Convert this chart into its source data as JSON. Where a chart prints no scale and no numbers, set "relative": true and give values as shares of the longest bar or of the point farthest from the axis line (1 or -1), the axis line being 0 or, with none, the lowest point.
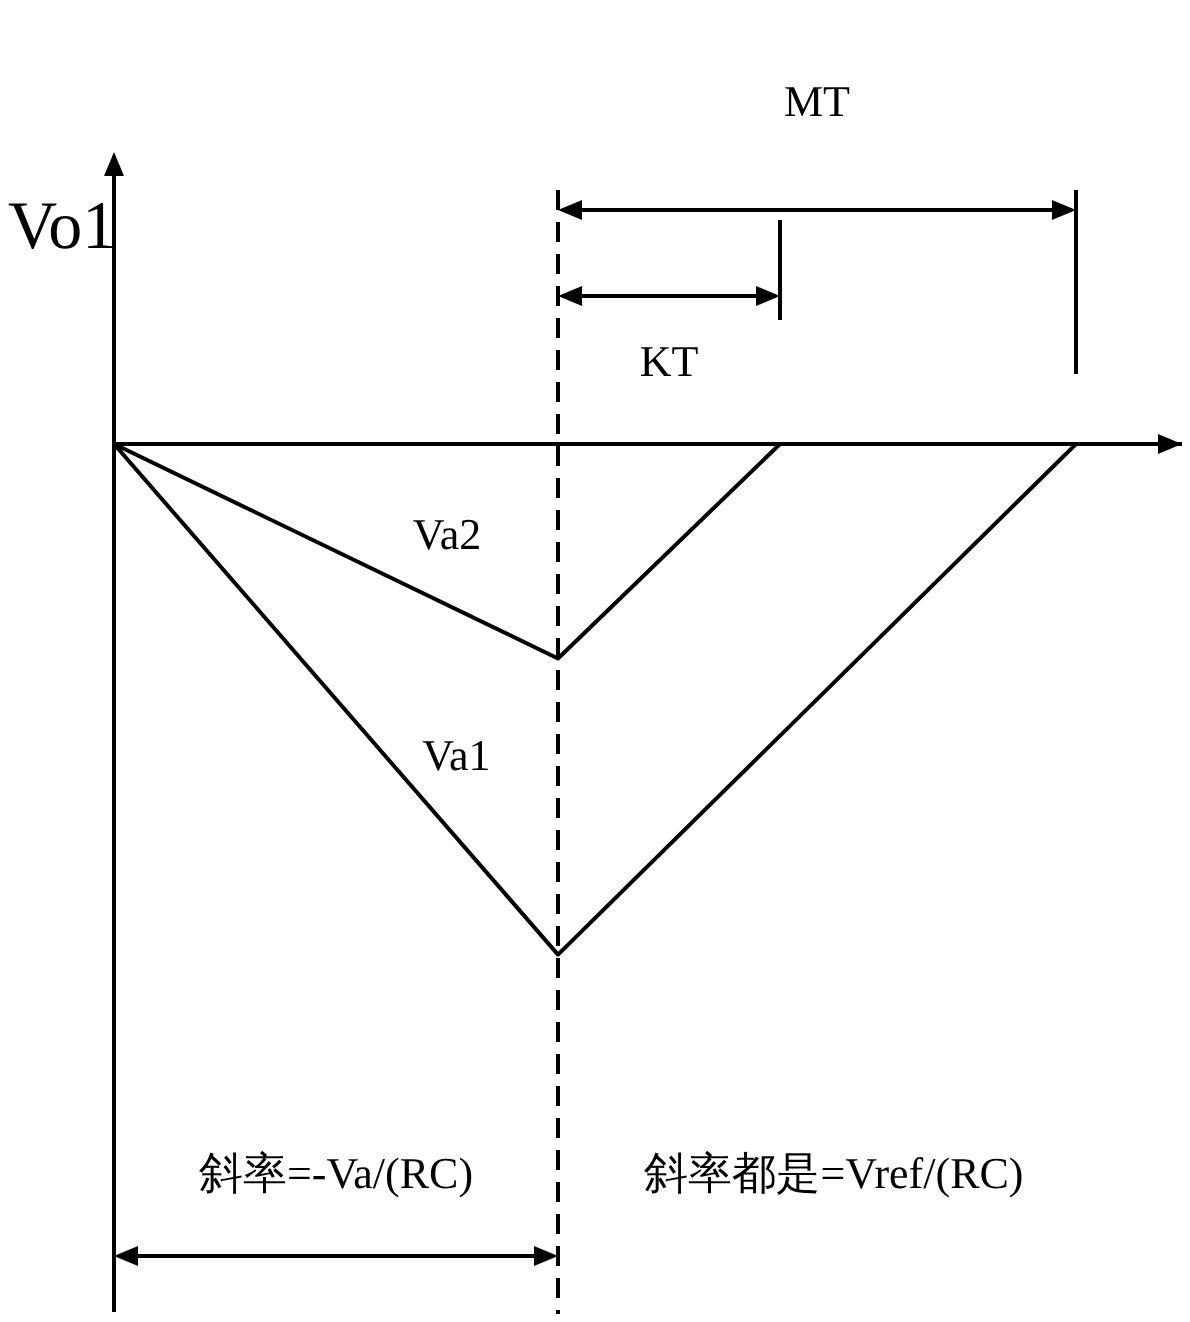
{
  "chart_data": {
    "type": "line",
    "relative": true,
    "ylabel": "Vo1",
    "marker": "none",
    "line_style": "solid",
    "categories": [
      null,
      null,
      null,
      null,
      null,
      null,
      null,
      null,
      null,
      null,
      null,
      null,
      null,
      null,
      null
    ],
    "series": [
      {
        "name": "Va2",
        "color": "#000000",
        "values": [
          0,
          null,
          null,
          null,
          null,
          null,
          -0.42,
          null,
          null,
          0,
          null,
          null,
          null,
          null,
          null
        ]
      },
      {
        "name": "Va1",
        "color": "#000000",
        "values": [
          0,
          null,
          null,
          null,
          null,
          null,
          -1,
          null,
          null,
          null,
          null,
          null,
          null,
          0,
          null
        ]
      }
    ],
    "annotations": [
      "MT",
      "KT",
      "斜率=-Va/(RC)",
      "斜率都是=Vref/(RC)"
    ]
  }
}
